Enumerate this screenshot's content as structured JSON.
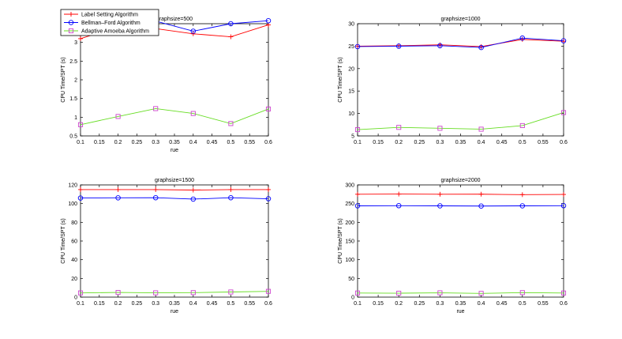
{
  "figure": {
    "legend": {
      "placement": "top-left",
      "entries": [
        {
          "label": "Label Setting Algorithm",
          "color": "#ff0000",
          "marker": "plus"
        },
        {
          "label": "Bellman–Ford Algorithm",
          "color": "#0000ff",
          "marker": "circle"
        },
        {
          "label": "Adaptive Amoeba Algorithm",
          "color": "#66dd22",
          "marker": "square",
          "marker_color": "#cc44cc"
        }
      ]
    }
  },
  "chart_data": [
    {
      "type": "line",
      "title": "graphsize=500",
      "xlabel": "rue",
      "ylabel": "CPU Time/SPT (s)",
      "x": [
        0.1,
        0.2,
        0.3,
        0.4,
        0.5,
        0.6
      ],
      "xticks": [
        "0.1",
        "0.15",
        "0.2",
        "0.25",
        "0.3",
        "0.35",
        "0.4",
        "0.45",
        "0.5",
        "0.55",
        "0.6"
      ],
      "xlim": [
        0.1,
        0.6
      ],
      "ylim": [
        0.5,
        3.5
      ],
      "yticks": [
        "0.5",
        "1",
        "1.5",
        "2",
        "2.5",
        "3",
        "3.5"
      ],
      "grid": false,
      "series": [
        {
          "name": "Label Setting Algorithm",
          "values": [
            3.1,
            3.42,
            3.37,
            3.23,
            3.15,
            3.47
          ]
        },
        {
          "name": "Bellman–Ford Algorithm",
          "values": [
            3.25,
            3.6,
            3.57,
            3.3,
            3.5,
            3.58
          ]
        },
        {
          "name": "Adaptive Amoeba Algorithm",
          "values": [
            0.8,
            1.02,
            1.23,
            1.1,
            0.83,
            1.22
          ]
        }
      ]
    },
    {
      "type": "line",
      "title": "graphsize=1000",
      "xlabel": "",
      "ylabel": "CPU Time/SPT (s)",
      "x": [
        0.1,
        0.2,
        0.3,
        0.4,
        0.5,
        0.6
      ],
      "xticks": [
        "0.1",
        "0.15",
        "0.2",
        "0.25",
        "0.3",
        "0.35",
        "0.4",
        "0.45",
        "0.5",
        "0.55",
        "0.6"
      ],
      "xlim": [
        0.1,
        0.6
      ],
      "ylim": [
        5,
        30
      ],
      "yticks": [
        "5",
        "10",
        "15",
        "20",
        "25",
        "30"
      ],
      "grid": false,
      "series": [
        {
          "name": "Label Setting Algorithm",
          "values": [
            25.0,
            25.1,
            25.3,
            24.9,
            26.5,
            26.1
          ]
        },
        {
          "name": "Bellman–Ford Algorithm",
          "values": [
            24.9,
            25.0,
            25.1,
            24.7,
            26.8,
            26.2
          ]
        },
        {
          "name": "Adaptive Amoeba Algorithm",
          "values": [
            6.4,
            6.9,
            6.7,
            6.5,
            7.3,
            10.2
          ]
        }
      ]
    },
    {
      "type": "line",
      "title": "graphsize=1500",
      "xlabel": "rue",
      "ylabel": "CPU Time/SPT (s)",
      "x": [
        0.1,
        0.2,
        0.3,
        0.4,
        0.5,
        0.6
      ],
      "xticks": [
        "0.1",
        "0.15",
        "0.2",
        "0.25",
        "0.3",
        "0.35",
        "0.4",
        "0.45",
        "0.5",
        "0.55",
        "0.6"
      ],
      "xlim": [
        0.1,
        0.6
      ],
      "ylim": [
        0,
        120
      ],
      "yticks": [
        "0",
        "20",
        "40",
        "60",
        "80",
        "100",
        "120"
      ],
      "grid": false,
      "series": [
        {
          "name": "Label Setting Algorithm",
          "values": [
            115,
            115,
            115,
            114.5,
            115,
            115
          ]
        },
        {
          "name": "Bellman–Ford Algorithm",
          "values": [
            106,
            106.2,
            106.3,
            104.8,
            106.3,
            105.2
          ]
        },
        {
          "name": "Adaptive Amoeba Algorithm",
          "values": [
            4.5,
            5,
            4.6,
            4.8,
            5.5,
            6.2
          ]
        }
      ]
    },
    {
      "type": "line",
      "title": "graphsize=2000",
      "xlabel": "rue",
      "ylabel": "CPU Time/SPT (s)",
      "x": [
        0.1,
        0.2,
        0.3,
        0.4,
        0.5,
        0.6
      ],
      "xticks": [
        "0.1",
        "0.15",
        "0.2",
        "0.25",
        "0.3",
        "0.35",
        "0.4",
        "0.45",
        "0.5",
        "0.55",
        "0.6"
      ],
      "xlim": [
        0.1,
        0.6
      ],
      "ylim": [
        0,
        300
      ],
      "yticks": [
        "0",
        "50",
        "100",
        "150",
        "200",
        "250",
        "300"
      ],
      "grid": false,
      "series": [
        {
          "name": "Label Setting Algorithm",
          "values": [
            275,
            275.5,
            275,
            275.2,
            274,
            274.5
          ]
        },
        {
          "name": "Bellman–Ford Algorithm",
          "values": [
            244,
            244.5,
            244,
            243.5,
            244,
            244.5
          ]
        },
        {
          "name": "Adaptive Amoeba Algorithm",
          "values": [
            11,
            10.5,
            11.5,
            10,
            12,
            11
          ]
        }
      ]
    }
  ]
}
